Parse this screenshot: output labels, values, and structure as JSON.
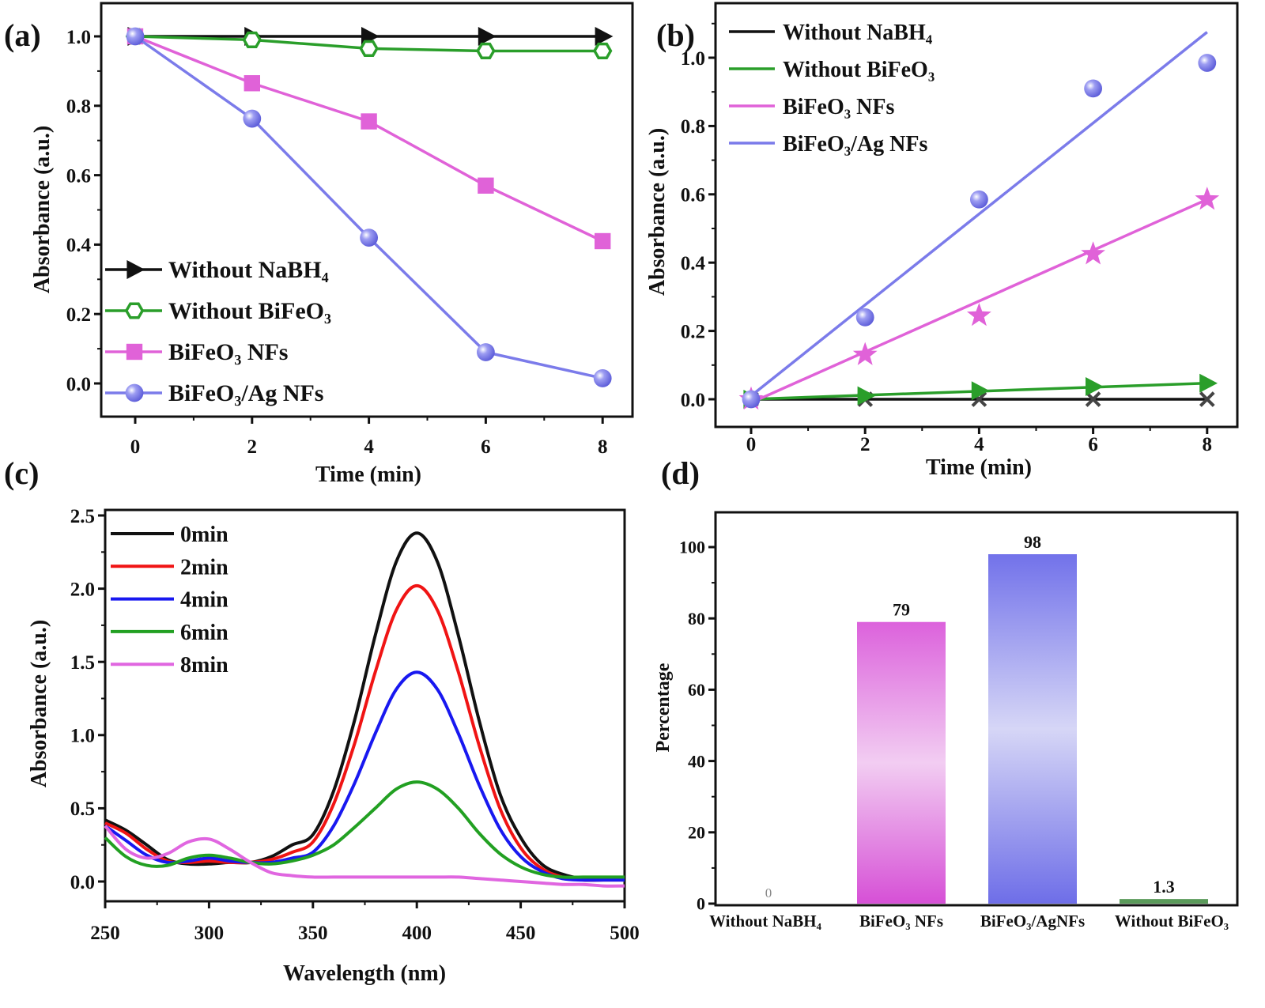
{
  "chart_data": [
    {
      "panel_label": "(a)",
      "type": "line",
      "xlabel": "Time (min)",
      "ylabel": "Absorbance (a.u.)",
      "x": [
        0,
        2,
        4,
        6,
        8
      ],
      "xticks": [
        "0",
        "2",
        "4",
        "6",
        "8"
      ],
      "yticks": [
        "0.0",
        "0.2",
        "0.4",
        "0.6",
        "0.8",
        "1.0"
      ],
      "xlim": [
        -0.55,
        8.5
      ],
      "ylim": [
        -0.1,
        1.09
      ],
      "legend_position": "bottom-left",
      "series": [
        {
          "name": "Without NaBH₄",
          "color": "#111111",
          "marker": "triangle-right",
          "values": [
            1.0,
            1.0,
            1.0,
            1.0,
            1.0
          ]
        },
        {
          "name": "Without BiFeO₃",
          "color": "#2a9e2a",
          "marker": "hexagon-open",
          "values": [
            1.0,
            0.99,
            0.965,
            0.958,
            0.958
          ]
        },
        {
          "name": "BiFeO₃ NFs",
          "color": "#e062d8",
          "marker": "square",
          "values": [
            1.0,
            0.865,
            0.755,
            0.57,
            0.41
          ]
        },
        {
          "name": "BiFeO₃/Ag NFs",
          "color": "#7b7bea",
          "marker": "circle",
          "values": [
            1.0,
            0.763,
            0.42,
            0.09,
            0.015
          ]
        }
      ]
    },
    {
      "panel_label": "(b)",
      "type": "scatter",
      "xlabel": "Time (min)",
      "ylabel": "Absorbance (a.u.)",
      "x": [
        0,
        2,
        4,
        6,
        8
      ],
      "xticks": [
        "0",
        "2",
        "4",
        "6",
        "8"
      ],
      "yticks": [
        "0.0",
        "0.2",
        "0.4",
        "0.6",
        "0.8",
        "1.0"
      ],
      "xlim": [
        -0.6,
        8.5
      ],
      "ylim": [
        -0.08,
        1.15
      ],
      "legend_position": "top-left",
      "series": [
        {
          "name": "Without NaBH₄",
          "color": "#111111",
          "marker": "x",
          "values": [
            0,
            0,
            0,
            0,
            0
          ],
          "fit": [
            0,
            0
          ]
        },
        {
          "name": "Without BiFeO₃",
          "color": "#2a9e2a",
          "marker": "triangle-right",
          "values": [
            0,
            0.01,
            0.025,
            0.037,
            0.047
          ],
          "fit": [
            0,
            0.047
          ]
        },
        {
          "name": "BiFeO₃ NFs",
          "color": "#e062d8",
          "marker": "star",
          "values": [
            0,
            0.13,
            0.245,
            0.425,
            0.585
          ],
          "fit": [
            -0.01,
            0.585
          ]
        },
        {
          "name": "BiFeO₃/Ag NFs",
          "color": "#7b7bea",
          "marker": "circle",
          "values": [
            0,
            0.24,
            0.585,
            0.91,
            0.985
          ],
          "fit": [
            0.01,
            1.075
          ]
        }
      ]
    },
    {
      "panel_label": "(c)",
      "type": "line",
      "xlabel": "Wavelength (nm)",
      "ylabel": "Absorbance (a.u.)",
      "x": [
        250,
        260,
        270,
        280,
        290,
        300,
        310,
        320,
        330,
        340,
        350,
        360,
        370,
        380,
        390,
        400,
        410,
        420,
        430,
        440,
        450,
        460,
        470,
        480,
        490,
        500
      ],
      "xticks": [
        "250",
        "300",
        "350",
        "400",
        "450",
        "500"
      ],
      "yticks": [
        "0.0",
        "0.5",
        "1.0",
        "1.5",
        "2.0",
        "2.5"
      ],
      "xlim": [
        250,
        500
      ],
      "ylim": [
        -0.13,
        2.55
      ],
      "legend_position": "top-left",
      "series": [
        {
          "name": "0min",
          "color": "#111111",
          "values": [
            0.42,
            0.35,
            0.25,
            0.15,
            0.12,
            0.12,
            0.13,
            0.13,
            0.17,
            0.25,
            0.32,
            0.62,
            1.1,
            1.68,
            2.18,
            2.38,
            2.18,
            1.68,
            1.1,
            0.6,
            0.3,
            0.12,
            0.05,
            0.02,
            0.02,
            0.02
          ]
        },
        {
          "name": "2min",
          "color": "#f01414",
          "values": [
            0.4,
            0.33,
            0.22,
            0.14,
            0.13,
            0.14,
            0.13,
            0.13,
            0.15,
            0.2,
            0.27,
            0.53,
            0.94,
            1.43,
            1.85,
            2.02,
            1.85,
            1.43,
            0.93,
            0.5,
            0.23,
            0.09,
            0.03,
            0.01,
            0.01,
            0.01
          ]
        },
        {
          "name": "4min",
          "color": "#1818f0",
          "values": [
            0.38,
            0.28,
            0.18,
            0.13,
            0.14,
            0.16,
            0.14,
            0.13,
            0.13,
            0.16,
            0.2,
            0.38,
            0.67,
            1.01,
            1.31,
            1.43,
            1.31,
            1.01,
            0.66,
            0.36,
            0.17,
            0.07,
            0.02,
            0.01,
            0.01,
            0.01
          ]
        },
        {
          "name": "6min",
          "color": "#22a022",
          "values": [
            0.3,
            0.17,
            0.11,
            0.11,
            0.16,
            0.18,
            0.16,
            0.13,
            0.12,
            0.14,
            0.18,
            0.25,
            0.37,
            0.5,
            0.63,
            0.68,
            0.63,
            0.5,
            0.33,
            0.19,
            0.1,
            0.05,
            0.03,
            0.03,
            0.03,
            0.03
          ]
        },
        {
          "name": "8min",
          "color": "#e066e0",
          "values": [
            0.38,
            0.22,
            0.16,
            0.19,
            0.27,
            0.29,
            0.22,
            0.13,
            0.06,
            0.04,
            0.03,
            0.03,
            0.03,
            0.03,
            0.03,
            0.03,
            0.03,
            0.03,
            0.02,
            0.01,
            0.0,
            -0.01,
            -0.02,
            -0.02,
            -0.03,
            -0.03
          ]
        }
      ]
    },
    {
      "panel_label": "(d)",
      "type": "bar",
      "xlabel": "",
      "ylabel": "Percentage",
      "categories": [
        "Without NaBH₄",
        "BiFeO₃ NFs",
        "BiFeO₃/AgNFs",
        "Without BiFeO₃"
      ],
      "values": [
        0,
        79,
        98,
        1.3
      ],
      "value_labels": [
        "0",
        "79",
        "98",
        "1.3"
      ],
      "colors": [
        "#bbbbbb",
        "#dc5edc",
        "#7474ea",
        "#5a9a5a"
      ],
      "yticks": [
        "0",
        "20",
        "40",
        "60",
        "80",
        "100"
      ],
      "ylim": [
        0,
        110
      ]
    }
  ]
}
